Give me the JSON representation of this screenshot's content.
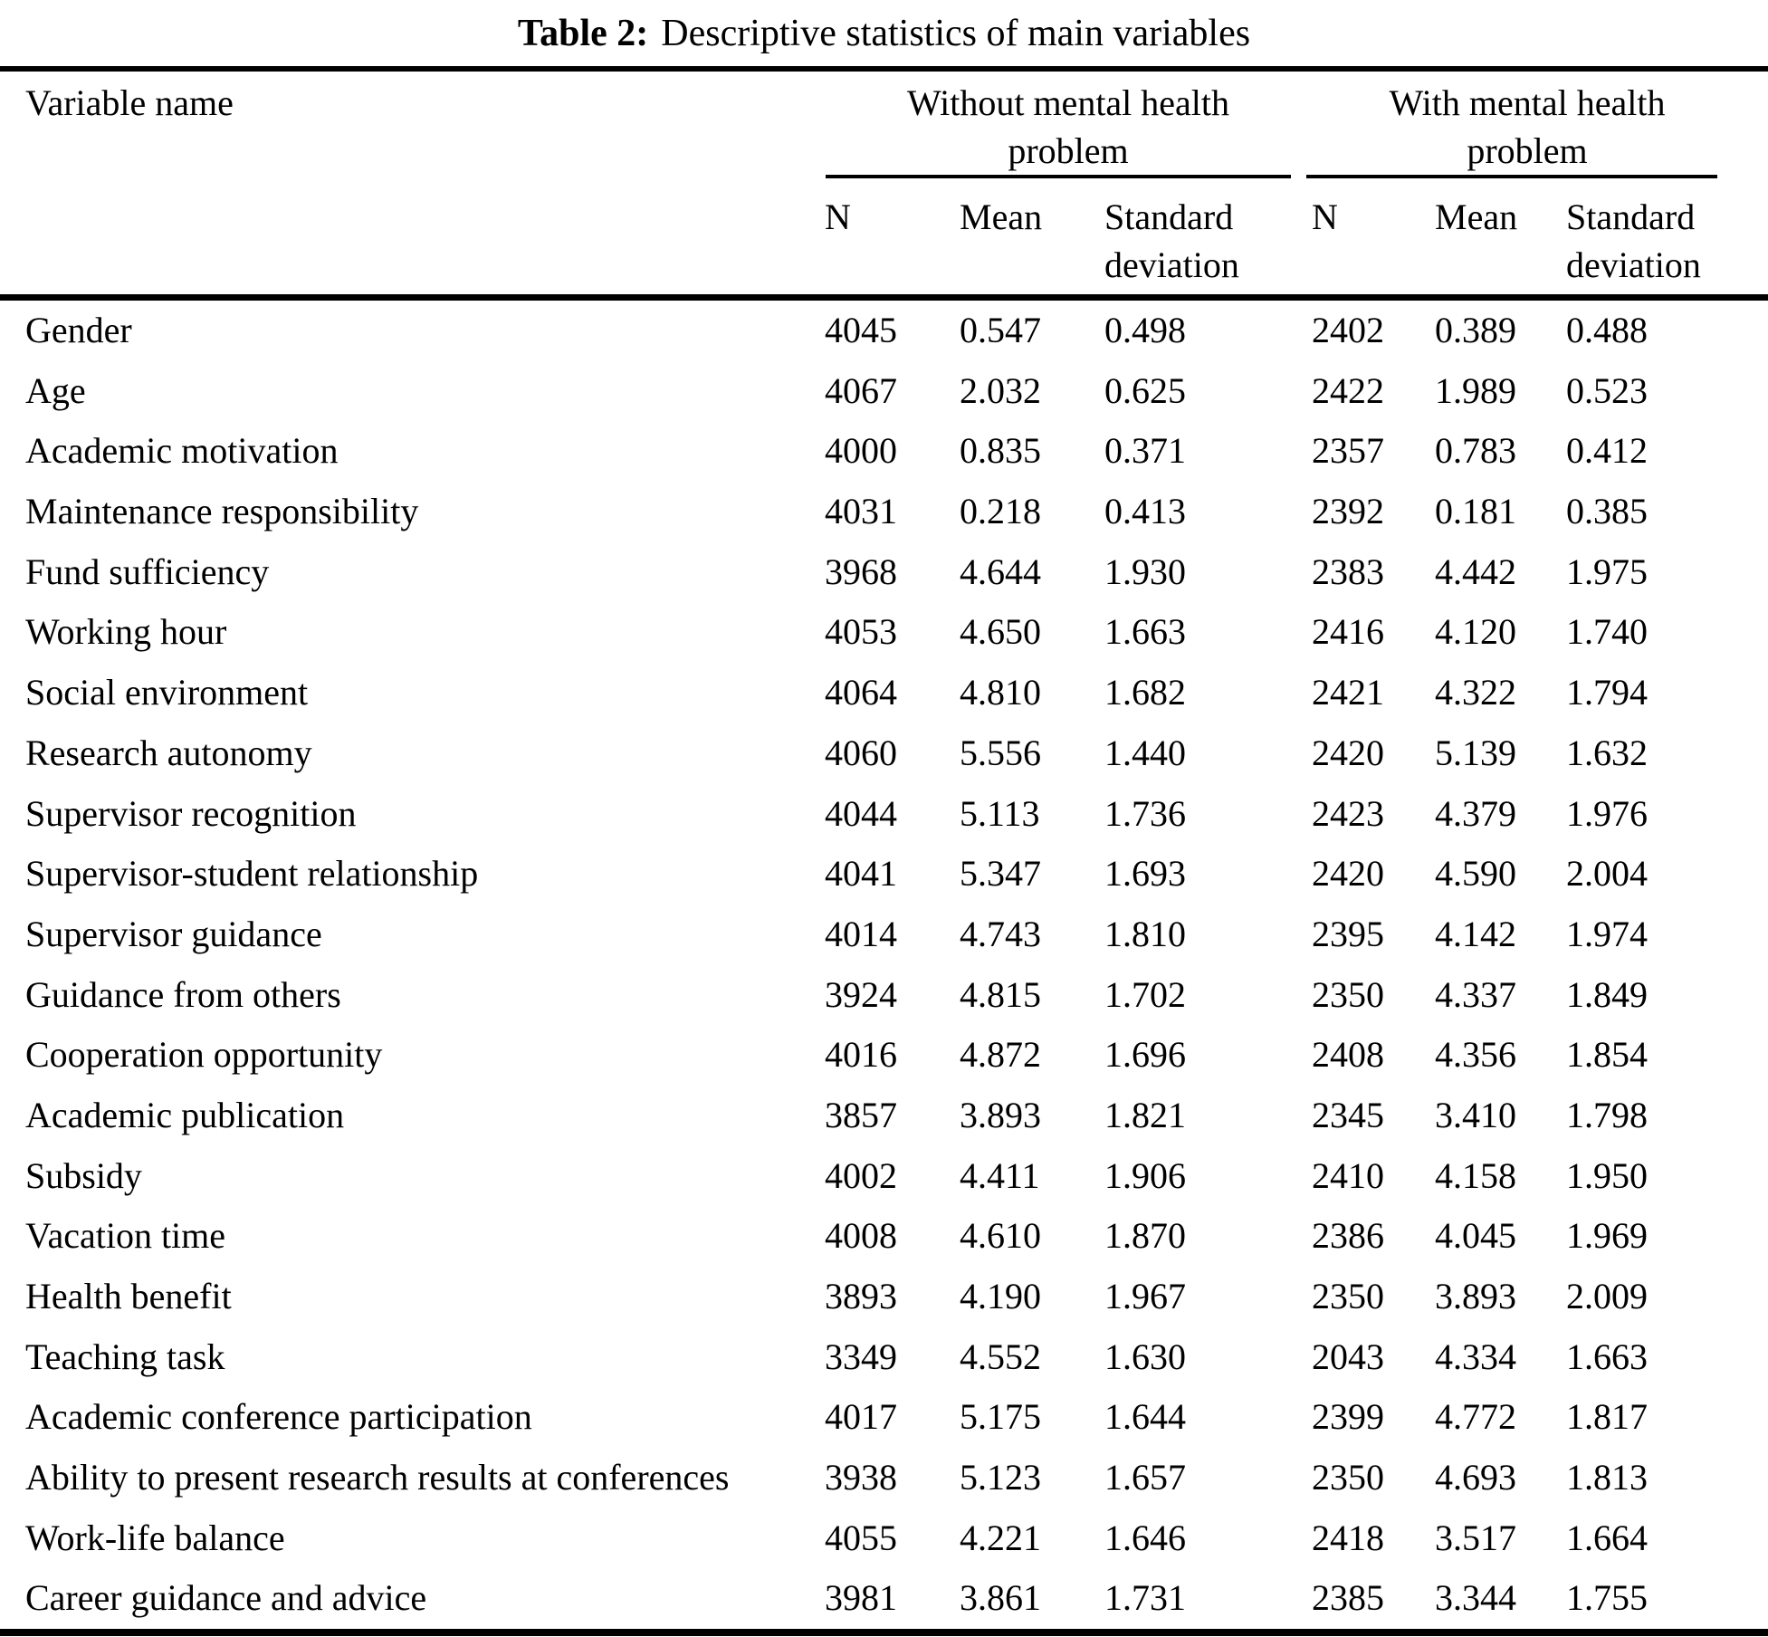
{
  "title": {
    "label": "Table 2:",
    "caption": "Descriptive statistics of main variables"
  },
  "header": {
    "variable_col": "Variable name",
    "groups": [
      {
        "line1": "Without mental health",
        "line2": "problem"
      },
      {
        "line1": "With mental health",
        "line2": "problem"
      }
    ],
    "stat_cols": [
      "N",
      "Mean",
      "Standard deviation"
    ]
  },
  "rows": [
    [
      "Gender",
      "4045",
      "0.547",
      "0.498",
      "2402",
      "0.389",
      "0.488"
    ],
    [
      "Age",
      "4067",
      "2.032",
      "0.625",
      "2422",
      "1.989",
      "0.523"
    ],
    [
      "Academic motivation",
      "4000",
      "0.835",
      "0.371",
      "2357",
      "0.783",
      "0.412"
    ],
    [
      "Maintenance responsibility",
      "4031",
      "0.218",
      "0.413",
      "2392",
      "0.181",
      "0.385"
    ],
    [
      "Fund sufficiency",
      "3968",
      "4.644",
      "1.930",
      "2383",
      "4.442",
      "1.975"
    ],
    [
      "Working hour",
      "4053",
      "4.650",
      "1.663",
      "2416",
      "4.120",
      "1.740"
    ],
    [
      "Social environment",
      "4064",
      "4.810",
      "1.682",
      "2421",
      "4.322",
      "1.794"
    ],
    [
      "Research autonomy",
      "4060",
      "5.556",
      "1.440",
      "2420",
      "5.139",
      "1.632"
    ],
    [
      "Supervisor recognition",
      "4044",
      "5.113",
      "1.736",
      "2423",
      "4.379",
      "1.976"
    ],
    [
      "Supervisor-student relationship",
      "4041",
      "5.347",
      "1.693",
      "2420",
      "4.590",
      "2.004"
    ],
    [
      "Supervisor guidance",
      "4014",
      "4.743",
      "1.810",
      "2395",
      "4.142",
      "1.974"
    ],
    [
      "Guidance from others",
      "3924",
      "4.815",
      "1.702",
      "2350",
      "4.337",
      "1.849"
    ],
    [
      "Cooperation opportunity",
      "4016",
      "4.872",
      "1.696",
      "2408",
      "4.356",
      "1.854"
    ],
    [
      "Academic publication",
      "3857",
      "3.893",
      "1.821",
      "2345",
      "3.410",
      "1.798"
    ],
    [
      "Subsidy",
      "4002",
      "4.411",
      "1.906",
      "2410",
      "4.158",
      "1.950"
    ],
    [
      "Vacation time",
      "4008",
      "4.610",
      "1.870",
      "2386",
      "4.045",
      "1.969"
    ],
    [
      "Health benefit",
      "3893",
      "4.190",
      "1.967",
      "2350",
      "3.893",
      "2.009"
    ],
    [
      "Teaching task",
      "3349",
      "4.552",
      "1.630",
      "2043",
      "4.334",
      "1.663"
    ],
    [
      "Academic conference participation",
      "4017",
      "5.175",
      "1.644",
      "2399",
      "4.772",
      "1.817"
    ],
    [
      "Ability to present research results at conferences",
      "3938",
      "5.123",
      "1.657",
      "2350",
      "4.693",
      "1.813"
    ],
    [
      "Work-life balance",
      "4055",
      "4.221",
      "1.646",
      "2418",
      "3.517",
      "1.664"
    ],
    [
      "Career guidance and advice",
      "3981",
      "3.861",
      "1.731",
      "2385",
      "3.344",
      "1.755"
    ]
  ]
}
